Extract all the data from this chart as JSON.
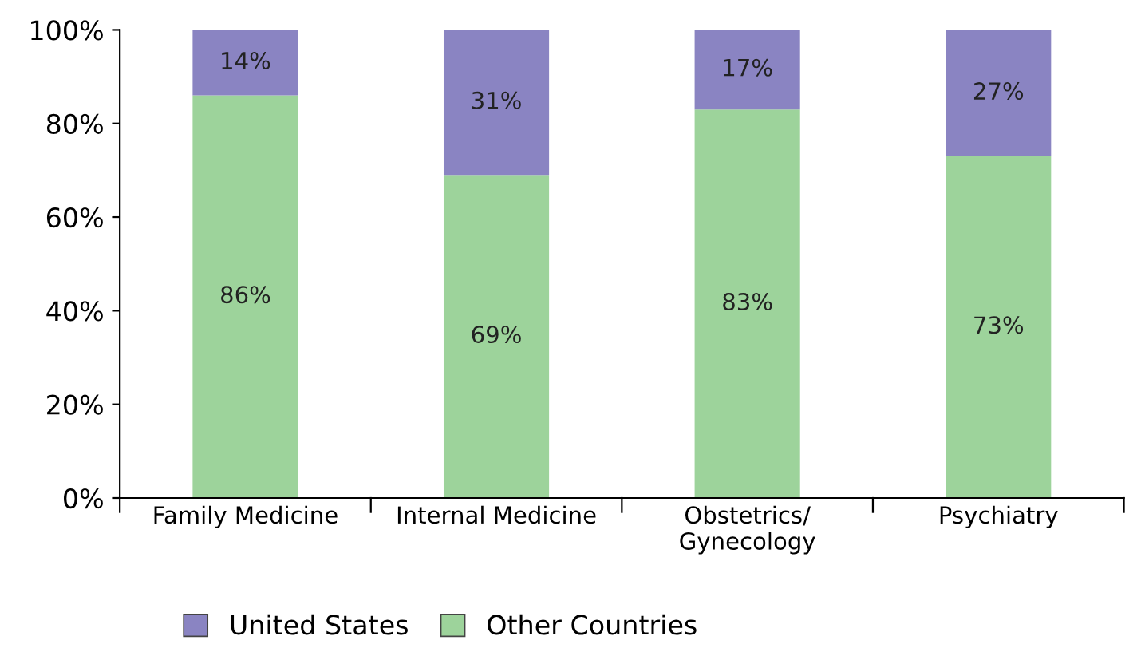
{
  "chart_data": {
    "type": "bar",
    "stacked": true,
    "categories": [
      "Family Medicine",
      "Internal Medicine",
      "Obstetrics/\nGynecology",
      "Psychiatry"
    ],
    "series": [
      {
        "name": "Other Countries",
        "color": "#9dd39b",
        "values": [
          86,
          69,
          83,
          73
        ],
        "value_labels": [
          "86%",
          "69%",
          "83%",
          "73%"
        ]
      },
      {
        "name": "United States",
        "color": "#8a84c2",
        "values": [
          14,
          31,
          17,
          27
        ],
        "value_labels": [
          "14%",
          "31%",
          "17%",
          "27%"
        ]
      }
    ],
    "ylim": [
      0,
      100
    ],
    "yticks": [
      {
        "value": 0,
        "label": "0%"
      },
      {
        "value": 20,
        "label": "20%"
      },
      {
        "value": 40,
        "label": "40%"
      },
      {
        "value": 60,
        "label": "60%"
      },
      {
        "value": 80,
        "label": "80%"
      },
      {
        "value": 100,
        "label": "100%"
      }
    ],
    "grid": false,
    "legend": "bottom left"
  }
}
